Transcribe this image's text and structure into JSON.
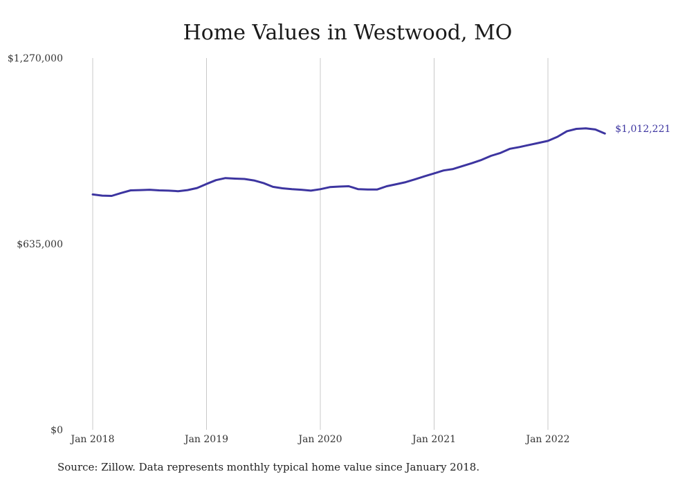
{
  "chart_data": {
    "type": "line",
    "title": "Home Values in Westwood, MO",
    "source_note": "Source: Zillow. Data represents monthly typical home value since January 2018.",
    "ylim": [
      0,
      1270000
    ],
    "y_ticks": [
      {
        "value": 0,
        "label": "$0"
      },
      {
        "value": 635000,
        "label": "$635,000"
      },
      {
        "value": 1270000,
        "label": "$1,270,000"
      }
    ],
    "x_ticks": [
      {
        "value": "2018-01",
        "label": "Jan 2018"
      },
      {
        "value": "2019-01",
        "label": "Jan 2019"
      },
      {
        "value": "2020-01",
        "label": "Jan 2020"
      },
      {
        "value": "2021-01",
        "label": "Jan 2021"
      },
      {
        "value": "2022-01",
        "label": "Jan 2022"
      }
    ],
    "grid": "vertical",
    "line_color": "#3d35a0",
    "end_label": "$1,012,221",
    "series": [
      {
        "x": [
          "2018-01",
          "2018-02",
          "2018-03",
          "2018-04",
          "2018-05",
          "2018-06",
          "2018-07",
          "2018-08",
          "2018-09",
          "2018-10",
          "2018-11",
          "2018-12",
          "2019-01",
          "2019-02",
          "2019-03",
          "2019-04",
          "2019-05",
          "2019-06",
          "2019-07",
          "2019-08",
          "2019-09",
          "2019-10",
          "2019-11",
          "2019-12",
          "2020-01",
          "2020-02",
          "2020-03",
          "2020-04",
          "2020-05",
          "2020-06",
          "2020-07",
          "2020-08",
          "2020-09",
          "2020-10",
          "2020-11",
          "2020-12",
          "2021-01",
          "2021-02",
          "2021-03",
          "2021-04",
          "2021-05",
          "2021-06",
          "2021-07",
          "2021-08",
          "2021-09",
          "2021-10",
          "2021-11",
          "2021-12",
          "2022-01",
          "2022-02",
          "2022-03",
          "2022-04",
          "2022-05",
          "2022-06",
          "2022-07"
        ],
        "values": [
          804000,
          800000,
          799000,
          809000,
          818000,
          819000,
          820000,
          818000,
          817000,
          815000,
          819000,
          826000,
          840000,
          853000,
          860000,
          858000,
          857000,
          852000,
          843000,
          830000,
          825000,
          822000,
          820000,
          817000,
          822000,
          829000,
          831000,
          832000,
          822000,
          821000,
          821000,
          832000,
          839000,
          846000,
          856000,
          866000,
          876000,
          886000,
          891000,
          901000,
          911000,
          922000,
          936000,
          946000,
          960000,
          966000,
          973000,
          980000,
          987000,
          1001000,
          1020000,
          1028000,
          1030000,
          1026000,
          1012221
        ]
      }
    ]
  }
}
